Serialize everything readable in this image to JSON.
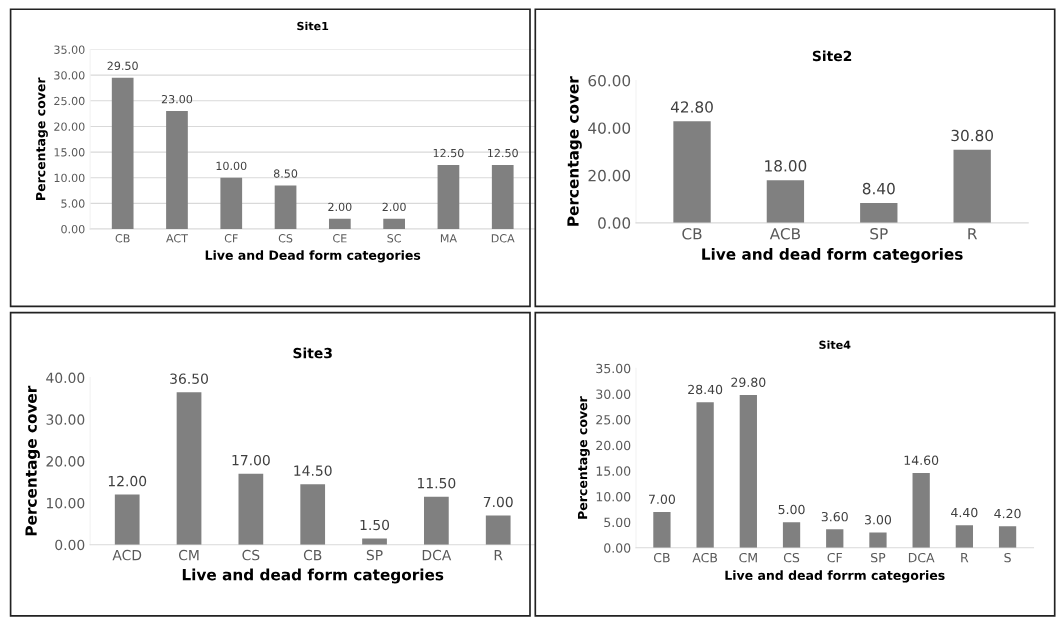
{
  "chart_data": [
    {
      "type": "bar",
      "title": "Site1",
      "xlabel": "Live and Dead form categories",
      "ylabel": "Percentage cover",
      "categories": [
        "CB",
        "ACT",
        "CF",
        "CS",
        "CE",
        "SC",
        "MA",
        "DCA"
      ],
      "values": [
        29.5,
        23,
        10,
        8.5,
        2,
        2,
        12.5,
        12.5
      ],
      "value_labels": [
        "29.50",
        "23.00",
        "10.00",
        "8.50",
        "2.00",
        "2.00",
        "12.50",
        "12.50"
      ],
      "color": "#808080",
      "ylim": [
        0,
        35
      ],
      "yticks": [
        {
          "value": 0,
          "label": "0.00"
        },
        {
          "value": 5,
          "label": "5.00"
        },
        {
          "value": 10,
          "label": "10.00"
        },
        {
          "value": 15,
          "label": "15.00"
        },
        {
          "value": 20,
          "label": "20.00"
        },
        {
          "value": 25,
          "label": "25.00"
        },
        {
          "value": 30,
          "label": "30.00"
        },
        {
          "value": 35,
          "label": "35.00"
        }
      ],
      "grid": "y"
    },
    {
      "type": "bar",
      "title": "Site2",
      "xlabel": "Live and dead form categories",
      "ylabel": "Percentage cover",
      "categories": [
        "CB",
        "ACB",
        "SP",
        "R"
      ],
      "values": [
        42.8,
        18,
        8.4,
        30.8
      ],
      "value_labels": [
        "42.80",
        "18.00",
        "8.40",
        "30.80"
      ],
      "color": "#808080",
      "ylim": [
        0,
        60
      ],
      "yticks": [
        {
          "value": 0,
          "label": "0.00"
        },
        {
          "value": 20,
          "label": "20.00"
        },
        {
          "value": 40,
          "label": "40.00"
        },
        {
          "value": 60,
          "label": "60.00"
        }
      ]
    },
    {
      "type": "bar",
      "title": "Site3",
      "xlabel": "Live and dead form categories",
      "ylabel": "Percentage cover",
      "categories": [
        "ACD",
        "CM",
        "CS",
        "CB",
        "SP",
        "DCA",
        "R"
      ],
      "values": [
        12,
        36.5,
        17,
        14.5,
        1.5,
        11.5,
        7
      ],
      "value_labels": [
        "12.00",
        "36.50",
        "17.00",
        "14.50",
        "1.50",
        "11.50",
        "7.00"
      ],
      "color": "#808080",
      "ylim": [
        0,
        40
      ],
      "yticks": [
        {
          "value": 0,
          "label": "0.00"
        },
        {
          "value": 10,
          "label": "10.00"
        },
        {
          "value": 20,
          "label": "20.00"
        },
        {
          "value": 30,
          "label": "30.00"
        },
        {
          "value": 40,
          "label": "40.00"
        }
      ]
    },
    {
      "type": "bar",
      "title": "Site4",
      "xlabel": "Live and dead forrm categories",
      "ylabel": "Percentage cover",
      "categories": [
        "CB",
        "ACB",
        "CM",
        "CS",
        "CF",
        "SP",
        "DCA",
        "R",
        "S"
      ],
      "values": [
        7,
        28.4,
        29.8,
        5,
        3.6,
        3,
        14.6,
        4.4,
        4.2
      ],
      "value_labels": [
        "7.00",
        "28.40",
        "29.80",
        "5.00",
        "3.60",
        "3.00",
        "14.60",
        "4.40",
        "4.20"
      ],
      "color": "#808080",
      "ylim": [
        0,
        35
      ],
      "yticks": [
        {
          "value": 0,
          "label": "0.00"
        },
        {
          "value": 5,
          "label": "5.00"
        },
        {
          "value": 10,
          "label": "10.00"
        },
        {
          "value": 15,
          "label": "15.00"
        },
        {
          "value": 20,
          "label": "20.00"
        },
        {
          "value": 25,
          "label": "25.00"
        },
        {
          "value": 30,
          "label": "30.00"
        },
        {
          "value": 35,
          "label": "35.00"
        }
      ]
    }
  ]
}
